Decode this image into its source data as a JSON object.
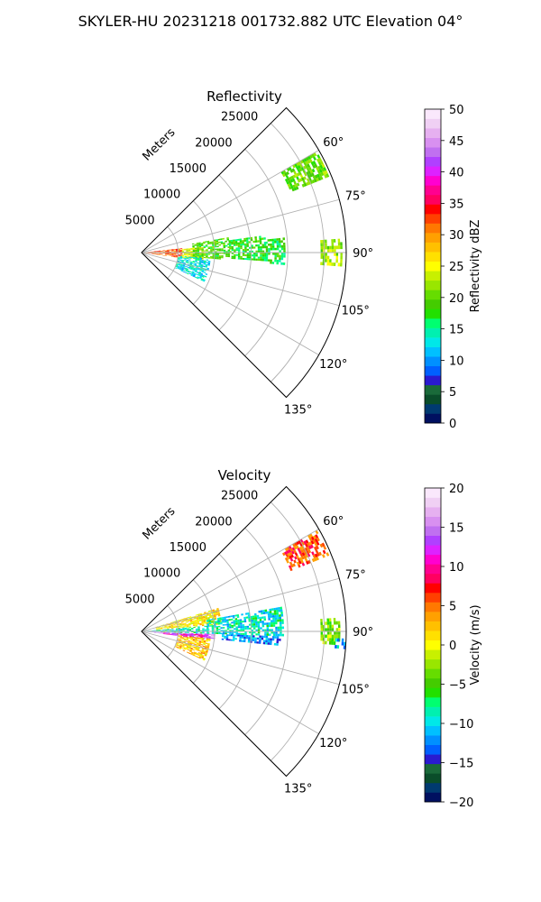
{
  "figure": {
    "suptitle": "SKYLER-HU  20231218  001732.882 UTC Elevation 04°"
  },
  "chart_data": [
    {
      "type": "heatmap",
      "projection": "polar-sector",
      "title": "Reflectivity",
      "radial_axis_label": "Meters",
      "radial_ticks": [
        5000,
        10000,
        15000,
        20000,
        25000
      ],
      "radial_tick_labels": [
        "5000",
        "10000",
        "15000",
        "20000",
        "25000"
      ],
      "rlim": [
        0,
        28000
      ],
      "azimuth_range_deg": [
        45,
        135
      ],
      "azimuth_ticks": [
        60,
        75,
        90,
        105,
        120,
        135
      ],
      "azimuth_tick_labels": [
        "60°",
        "75°",
        "90°",
        "105°",
        "120°",
        "135°"
      ],
      "grid": true,
      "colorbar": {
        "label": "Reflectivity dBZ",
        "vmin": 0,
        "vmax": 50,
        "ticks": [
          0,
          5,
          10,
          15,
          20,
          25,
          30,
          35,
          40,
          45,
          50
        ],
        "tick_labels": [
          "0",
          "5",
          "10",
          "15",
          "20",
          "25",
          "30",
          "35",
          "40",
          "45",
          "50"
        ],
        "colors": [
          "#001060",
          "#003a70",
          "#0a4d2a",
          "#1a6a3a",
          "#2a1ad0",
          "#0060ff",
          "#0090ff",
          "#00c0ff",
          "#00e8e8",
          "#00f0b0",
          "#00ff70",
          "#22e000",
          "#44cc00",
          "#66dd00",
          "#99e600",
          "#c8f000",
          "#ffff00",
          "#ffe000",
          "#ffc000",
          "#ffa000",
          "#ff7800",
          "#ff4000",
          "#ff0000",
          "#ff0060",
          "#ff0090",
          "#ff00d0",
          "#dd22ff",
          "#b040ff",
          "#c070f0",
          "#d890f0",
          "#e6b0f0",
          "#f0d0f4",
          "#fae8fc"
        ]
      },
      "echo_regions": [
        {
          "az_start": 84,
          "az_end": 98,
          "r_start": 500,
          "r_end": 5500,
          "value": 32
        },
        {
          "az_start": 85,
          "az_end": 97,
          "r_start": 5500,
          "r_end": 8500,
          "value": 24
        },
        {
          "az_start": 80,
          "az_end": 95,
          "r_start": 7000,
          "r_end": 12000,
          "value": 19
        },
        {
          "az_start": 82,
          "az_end": 94,
          "r_start": 12000,
          "r_end": 17000,
          "value": 18
        },
        {
          "az_start": 84,
          "az_end": 95,
          "r_start": 17000,
          "r_end": 19500,
          "value": 17
        },
        {
          "az_start": 95,
          "az_end": 115,
          "r_start": 5000,
          "r_end": 9500,
          "value": 13
        },
        {
          "az_start": 86,
          "az_end": 94,
          "r_start": 24500,
          "r_end": 27500,
          "value": 22
        },
        {
          "az_start": 60,
          "az_end": 68,
          "r_start": 22000,
          "r_end": 27500,
          "value": 20
        }
      ]
    },
    {
      "type": "heatmap",
      "projection": "polar-sector",
      "title": "Velocity",
      "radial_axis_label": "Meters",
      "radial_ticks": [
        5000,
        10000,
        15000,
        20000,
        25000
      ],
      "radial_tick_labels": [
        "5000",
        "10000",
        "15000",
        "20000",
        "25000"
      ],
      "rlim": [
        0,
        28000
      ],
      "azimuth_range_deg": [
        45,
        135
      ],
      "azimuth_ticks": [
        60,
        75,
        90,
        105,
        120,
        135
      ],
      "azimuth_tick_labels": [
        "60°",
        "75°",
        "90°",
        "105°",
        "120°",
        "135°"
      ],
      "grid": true,
      "colorbar": {
        "label": "Velocity (m/s)",
        "vmin": -20,
        "vmax": 20,
        "ticks": [
          -20,
          -15,
          -10,
          -5,
          0,
          5,
          10,
          15,
          20
        ],
        "tick_labels": [
          "−20",
          "−15",
          "−10",
          "−5",
          "0",
          "5",
          "10",
          "15",
          "20"
        ],
        "colors": [
          "#001060",
          "#003a70",
          "#0a4d2a",
          "#1a6a3a",
          "#2a1ad0",
          "#0060ff",
          "#0090ff",
          "#00c0ff",
          "#00e8e8",
          "#00f0b0",
          "#00ff70",
          "#22e000",
          "#44cc00",
          "#66dd00",
          "#99e600",
          "#c8f000",
          "#ffff00",
          "#ffe000",
          "#ffc000",
          "#ffa000",
          "#ff7800",
          "#ff4000",
          "#ff0000",
          "#ff0060",
          "#ff0090",
          "#ff00d0",
          "#dd22ff",
          "#b040ff",
          "#c070f0",
          "#d890f0",
          "#e6b0f0",
          "#f0d0f4",
          "#fae8fc"
        ]
      },
      "echo_regions": [
        {
          "az_start": 73,
          "az_end": 85,
          "r_start": 2000,
          "r_end": 11000,
          "value": 1
        },
        {
          "az_start": 85,
          "az_end": 92,
          "r_start": 500,
          "r_end": 9000,
          "value": -9
        },
        {
          "az_start": 92,
          "az_end": 96,
          "r_start": 500,
          "r_end": 10000,
          "value": 15
        },
        {
          "az_start": 93,
          "az_end": 97,
          "r_start": 3000,
          "r_end": 9000,
          "value": 11
        },
        {
          "az_start": 80,
          "az_end": 92,
          "r_start": 9000,
          "r_end": 19500,
          "value": -9
        },
        {
          "az_start": 92,
          "az_end": 96,
          "r_start": 11000,
          "r_end": 19000,
          "value": -12
        },
        {
          "az_start": 96,
          "az_end": 115,
          "r_start": 5000,
          "r_end": 9500,
          "value": 2
        },
        {
          "az_start": 86,
          "az_end": 94,
          "r_start": 24500,
          "r_end": 27000,
          "value": -3
        },
        {
          "az_start": 92,
          "az_end": 95,
          "r_start": 26500,
          "r_end": 27800,
          "value": -12
        },
        {
          "az_start": 60,
          "az_end": 68,
          "r_start": 22000,
          "r_end": 27500,
          "value": 6
        }
      ]
    }
  ]
}
